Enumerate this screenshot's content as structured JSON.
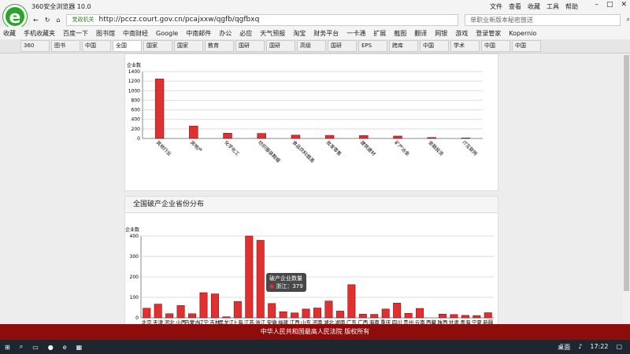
{
  "browser": {
    "title": "360安全浏览器 10.0",
    "menus": [
      "文件",
      "查看",
      "收藏",
      "工具",
      "帮助"
    ],
    "url_prefix": "党政机关",
    "url": "http://pccz.court.gov.cn/pcajxxw/qgfb/qgfbxq",
    "search_placeholder": "单职业新版本秘密放送",
    "bookmarks": [
      "收藏",
      "手机收藏夹",
      "百度一下",
      "图书馆",
      "中南财经",
      "Google",
      "中南邮件",
      "办公",
      "必应",
      "天气预报",
      "淘宝",
      "财务平台",
      "一卡通",
      "扩展",
      "截图",
      "翻译",
      "网银",
      "游戏",
      "登录管家",
      "Kopernio"
    ],
    "tabs": [
      "360",
      "图书",
      "中国",
      "全国",
      "国家",
      "国家",
      "教育",
      "国研",
      "国研",
      "高级",
      "国研",
      "EPS",
      "跨库",
      "中国",
      "学术",
      "中国",
      "中国"
    ],
    "active_tab": 3
  },
  "chart_data": [
    {
      "type": "bar",
      "ylabel": "企业数",
      "ylim": [
        0,
        1400
      ],
      "yticks": [
        0,
        200,
        400,
        600,
        800,
        1000,
        1200,
        1400
      ],
      "grid": true,
      "color": "#e03030",
      "categories": [
        "其他行业",
        "房地产",
        "化学化工",
        "纺织服装鞋帽",
        "食品饮料烟酒",
        "批发零售",
        "建筑建材",
        "矿产冶金",
        "金融投资",
        "IT互联网"
      ],
      "values": [
        1245,
        260,
        110,
        105,
        70,
        65,
        60,
        50,
        20,
        10
      ]
    },
    {
      "type": "bar",
      "title": "全国破产企业省份分布",
      "ylabel": "企业数",
      "ylim": [
        0,
        400
      ],
      "yticks": [
        0,
        100,
        200,
        300,
        400
      ],
      "grid": true,
      "color": "#e03030",
      "categories": [
        "北京",
        "天津",
        "河北",
        "山西",
        "内蒙古",
        "辽宁",
        "吉林",
        "黑龙江",
        "上海",
        "江苏",
        "浙江",
        "安徽",
        "福建",
        "江西",
        "山东",
        "河南",
        "湖北",
        "湖南",
        "广东",
        "广西",
        "海南",
        "重庆",
        "四川",
        "贵州",
        "云南",
        "西藏",
        "陕西",
        "甘肃",
        "青海",
        "宁夏",
        "新疆"
      ],
      "values": [
        47,
        67,
        20,
        60,
        20,
        123,
        117,
        5,
        80,
        400,
        379,
        70,
        30,
        24,
        43,
        48,
        82,
        33,
        162,
        18,
        17,
        43,
        72,
        22,
        46,
        0,
        18,
        16,
        12,
        11,
        25
      ],
      "tooltip": {
        "title": "破产企业数量",
        "label": "浙江：379"
      }
    }
  ],
  "footer": "中华人民共和国最高人民法院 版权所有",
  "taskbar": {
    "desktop": "桌面",
    "time": "17:22"
  }
}
